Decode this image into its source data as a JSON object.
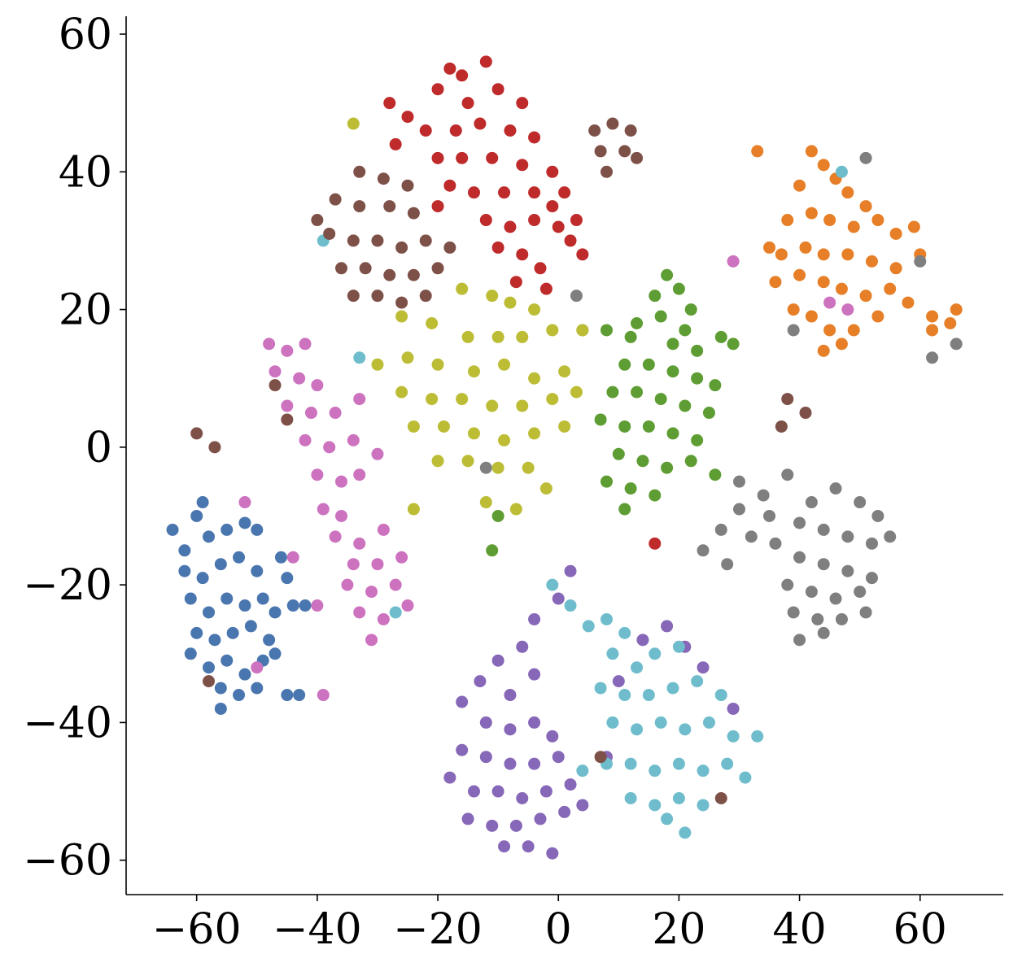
{
  "chart_data": {
    "type": "scatter",
    "xlim": [
      -71.7,
      73.8
    ],
    "ylim": [
      -65,
      62.6
    ],
    "xticks": [
      {
        "value": -60,
        "label": "−60"
      },
      {
        "value": -40,
        "label": "−40"
      },
      {
        "value": -20,
        "label": "−20"
      },
      0,
      20,
      40,
      60
    ],
    "yticks": [
      {
        "value": -60,
        "label": "−60"
      },
      {
        "value": -40,
        "label": "−40"
      },
      {
        "value": -20,
        "label": "−20"
      },
      0,
      20,
      40,
      60
    ],
    "grid": false,
    "series": [
      {
        "color": "#4a76af",
        "x": [
          -64,
          -62,
          -60,
          -58,
          -55,
          -52,
          -50,
          -62,
          -59,
          -56,
          -53,
          -50,
          -61,
          -58,
          -55,
          -52,
          -49,
          -60,
          -57,
          -54,
          -51,
          -48,
          -58,
          -55,
          -52,
          -49,
          -56,
          -53,
          -50,
          -47,
          -45,
          -44,
          -42,
          -46,
          -47,
          -43,
          -45,
          -59,
          -56,
          -61
        ],
        "y": [
          -12,
          -15,
          -10,
          -13,
          -12,
          -11,
          -12,
          -18,
          -19,
          -17,
          -16,
          -18,
          -22,
          -24,
          -22,
          -23,
          -22,
          -27,
          -28,
          -27,
          -26,
          -28,
          -32,
          -31,
          -33,
          -31,
          -35,
          -36,
          -35,
          -24,
          -19,
          -23,
          -23,
          -16,
          -30,
          -36,
          -36,
          -8,
          -38,
          -30
        ]
      },
      {
        "color": "#e67f27",
        "x": [
          42,
          44,
          40,
          46,
          48,
          51,
          38,
          42,
          45,
          49,
          53,
          56,
          59,
          37,
          41,
          44,
          48,
          52,
          56,
          60,
          36,
          40,
          44,
          47,
          51,
          55,
          58,
          62,
          65,
          66,
          39,
          42,
          45,
          49,
          53,
          44,
          47,
          62,
          35,
          33
        ],
        "y": [
          43,
          41,
          38,
          39,
          37,
          35,
          33,
          34,
          33,
          32,
          33,
          31,
          32,
          28,
          29,
          28,
          28,
          27,
          26,
          28,
          24,
          25,
          24,
          23,
          22,
          23,
          21,
          19,
          18,
          20,
          20,
          19,
          17,
          17,
          19,
          14,
          15,
          17,
          29,
          43
        ]
      },
      {
        "color": "#5e9d33",
        "x": [
          18,
          20,
          16,
          22,
          13,
          17,
          21,
          8,
          12,
          19,
          23,
          27,
          11,
          15,
          19,
          23,
          26,
          9,
          13,
          17,
          21,
          25,
          7,
          11,
          15,
          19,
          23,
          10,
          14,
          18,
          22,
          8,
          12,
          16,
          11,
          26,
          29,
          4,
          -10,
          -11
        ],
        "y": [
          25,
          23,
          22,
          20,
          18,
          19,
          17,
          17,
          16,
          15,
          14,
          16,
          12,
          12,
          11,
          10,
          9,
          8,
          8,
          7,
          6,
          5,
          4,
          3,
          3,
          2,
          1,
          -1,
          -2,
          -3,
          -2,
          -5,
          -6,
          -7,
          -9,
          -4,
          15,
          17,
          -10,
          -15
        ]
      },
      {
        "color": "#bf2a2b",
        "x": [
          -18,
          -16,
          -12,
          -20,
          -15,
          -10,
          -6,
          -25,
          -22,
          -17,
          -13,
          -8,
          -4,
          -20,
          -16,
          -11,
          -6,
          -1,
          -18,
          -14,
          -9,
          -4,
          1,
          -12,
          -8,
          -4,
          0,
          -10,
          -6,
          -3,
          -2,
          -7,
          4,
          3,
          -28,
          2,
          -27,
          -20,
          -1,
          16
        ],
        "y": [
          55,
          54,
          56,
          52,
          50,
          52,
          50,
          48,
          46,
          46,
          47,
          46,
          45,
          42,
          42,
          42,
          41,
          40,
          38,
          37,
          37,
          37,
          37,
          33,
          32,
          33,
          32,
          29,
          28,
          26,
          23,
          24,
          28,
          33,
          50,
          30,
          44,
          35,
          35,
          -14
        ]
      },
      {
        "color": "#8667b8",
        "x": [
          2,
          0,
          -4,
          -6,
          -10,
          -13,
          -16,
          -8,
          -4,
          -12,
          -8,
          -4,
          -1,
          -16,
          -12,
          -8,
          -4,
          0,
          -18,
          -14,
          -10,
          -6,
          -2,
          2,
          -15,
          -11,
          -7,
          -3,
          1,
          -9,
          -5,
          -1,
          4,
          8,
          10,
          14,
          18,
          21,
          24,
          29
        ],
        "y": [
          -18,
          -22,
          -25,
          -29,
          -31,
          -34,
          -37,
          -36,
          -33,
          -40,
          -41,
          -40,
          -42,
          -44,
          -45,
          -46,
          -46,
          -45,
          -48,
          -50,
          -50,
          -51,
          -50,
          -49,
          -54,
          -55,
          -55,
          -54,
          -53,
          -58,
          -58,
          -59,
          -52,
          -45,
          -34,
          -28,
          -26,
          -29,
          -32,
          -38
        ]
      },
      {
        "color": "#6fbdcc",
        "x": [
          -1,
          2,
          5,
          8,
          11,
          9,
          13,
          16,
          20,
          7,
          11,
          15,
          19,
          23,
          27,
          9,
          13,
          17,
          21,
          25,
          29,
          8,
          12,
          16,
          20,
          24,
          28,
          31,
          12,
          16,
          20,
          24,
          18,
          21,
          4,
          33,
          -39,
          -33,
          -27,
          47
        ],
        "y": [
          -20,
          -23,
          -26,
          -25,
          -27,
          -30,
          -32,
          -30,
          -29,
          -35,
          -36,
          -36,
          -35,
          -34,
          -36,
          -40,
          -41,
          -40,
          -41,
          -40,
          -42,
          -46,
          -46,
          -47,
          -46,
          -47,
          -46,
          -48,
          -51,
          -52,
          -51,
          -52,
          -54,
          -56,
          -47,
          -42,
          30,
          13,
          -24,
          40
        ]
      },
      {
        "color": "#7f7f7f",
        "x": [
          38,
          34,
          30,
          27,
          24,
          42,
          46,
          50,
          53,
          40,
          44,
          48,
          52,
          55,
          36,
          40,
          44,
          48,
          52,
          38,
          42,
          46,
          50,
          39,
          43,
          47,
          51,
          40,
          44,
          28,
          32,
          35,
          30,
          60,
          62,
          66,
          51,
          39,
          -12,
          3
        ],
        "y": [
          -4,
          -7,
          -9,
          -12,
          -15,
          -8,
          -6,
          -8,
          -10,
          -11,
          -12,
          -13,
          -14,
          -13,
          -14,
          -16,
          -17,
          -18,
          -19,
          -20,
          -21,
          -22,
          -21,
          -24,
          -25,
          -25,
          -24,
          -28,
          -27,
          -17,
          -13,
          -10,
          -5,
          27,
          13,
          15,
          42,
          17,
          -3,
          22
        ]
      },
      {
        "color": "#7d5148",
        "x": [
          -33,
          -29,
          -25,
          -37,
          -33,
          -28,
          -24,
          -38,
          -34,
          -30,
          -26,
          -22,
          -36,
          -32,
          -28,
          -24,
          -20,
          -34,
          -30,
          -26,
          -22,
          -40,
          -18,
          6,
          9,
          12,
          7,
          11,
          8,
          13,
          -47,
          -60,
          -57,
          -45,
          38,
          41,
          37,
          -58,
          27,
          7
        ],
        "y": [
          40,
          39,
          38,
          36,
          35,
          35,
          34,
          31,
          30,
          30,
          29,
          30,
          26,
          26,
          25,
          25,
          26,
          22,
          22,
          21,
          22,
          33,
          29,
          46,
          47,
          46,
          43,
          43,
          40,
          42,
          9,
          2,
          0,
          4,
          7,
          5,
          3,
          -34,
          -51,
          -45
        ]
      },
      {
        "color": "#cc72bf",
        "x": [
          -48,
          -45,
          -42,
          -47,
          -43,
          -40,
          -45,
          -41,
          -37,
          -33,
          -42,
          -38,
          -34,
          -30,
          -40,
          -36,
          -33,
          -39,
          -36,
          -37,
          -33,
          -29,
          -34,
          -30,
          -26,
          -35,
          -31,
          -27,
          -33,
          -29,
          -25,
          -31,
          -40,
          -50,
          -39,
          -52,
          -44,
          29,
          45,
          48
        ],
        "y": [
          15,
          14,
          15,
          11,
          10,
          9,
          6,
          5,
          5,
          7,
          1,
          0,
          1,
          -1,
          -4,
          -5,
          -4,
          -9,
          -10,
          -13,
          -14,
          -12,
          -17,
          -17,
          -16,
          -20,
          -21,
          -20,
          -24,
          -25,
          -23,
          -28,
          -23,
          -32,
          -36,
          -8,
          -16,
          27,
          21,
          20
        ]
      },
      {
        "color": "#bcbd35",
        "x": [
          -16,
          -11,
          -8,
          -4,
          -26,
          -21,
          -15,
          -10,
          -6,
          -1,
          4,
          -30,
          -25,
          -20,
          -14,
          -9,
          -4,
          1,
          -26,
          -21,
          -16,
          -11,
          -6,
          -1,
          3,
          -24,
          -19,
          -14,
          -9,
          -4,
          1,
          -20,
          -15,
          -10,
          -5,
          -12,
          -7,
          -2,
          -24,
          -34
        ],
        "y": [
          23,
          22,
          21,
          20,
          19,
          18,
          16,
          16,
          16,
          17,
          17,
          12,
          13,
          12,
          11,
          12,
          10,
          11,
          8,
          7,
          7,
          6,
          6,
          7,
          8,
          3,
          3,
          2,
          1,
          2,
          3,
          -2,
          -2,
          -3,
          -3,
          -8,
          -9,
          -6,
          -9,
          47
        ]
      }
    ]
  }
}
